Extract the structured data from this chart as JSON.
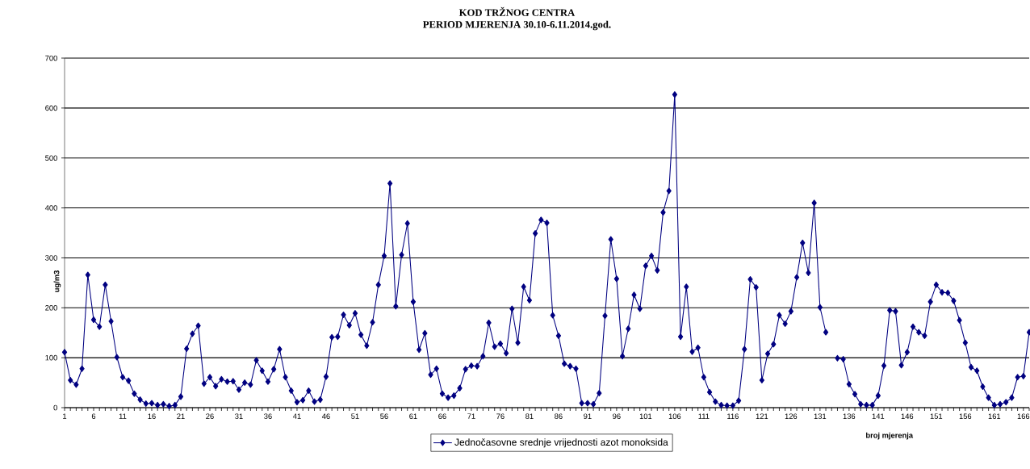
{
  "chart_data": {
    "type": "line",
    "title": "KOD TRŽNOG CENTRA",
    "subtitle": "PERIOD MJERENJA 30.10-6.11.2014.god.",
    "ylabel": "ug/m3",
    "xlabel": "broj mjerenja",
    "categories": [
      "1",
      null,
      null,
      null,
      null,
      "6",
      null,
      null,
      null,
      null,
      "11",
      null,
      null,
      null,
      null,
      "16",
      null,
      null,
      null,
      null,
      "21",
      null,
      null,
      null,
      null,
      "26",
      null,
      null,
      null,
      null,
      "31",
      null,
      null,
      null,
      null,
      "36",
      null,
      null,
      null,
      null,
      "41",
      null,
      null,
      null,
      null,
      "46",
      null,
      null,
      null,
      null,
      "51",
      null,
      null,
      null,
      null,
      "56",
      null,
      null,
      null,
      null,
      "61",
      null,
      null,
      null,
      null,
      "66",
      null,
      null,
      null,
      null,
      "71",
      null,
      null,
      null,
      null,
      "76",
      null,
      null,
      null,
      null,
      "81",
      null,
      null,
      null,
      null,
      "86",
      null,
      null,
      null,
      null,
      "91",
      null,
      null,
      null,
      null,
      "96",
      null,
      null,
      null,
      null,
      "101",
      null,
      null,
      null,
      null,
      "106",
      null,
      null,
      null,
      null,
      "111",
      null,
      null,
      null,
      null,
      "116",
      null,
      null,
      null,
      null,
      "121",
      null,
      null,
      null,
      null,
      "126",
      null,
      null,
      null,
      null,
      "131",
      null,
      null,
      null,
      null,
      "136",
      null,
      null,
      null,
      null,
      "141",
      null,
      null,
      null,
      null,
      "146",
      null,
      null,
      null,
      null,
      "151",
      null,
      null,
      null,
      null,
      "156",
      null,
      null,
      null,
      null,
      "161",
      null,
      null,
      null,
      null,
      "166",
      null
    ],
    "series": [
      {
        "name": "Jednočasovne srednje vrijednosti azot monoksida",
        "color": "#000080",
        "values": [
          111,
          55,
          46,
          78,
          266,
          176,
          162,
          246,
          173,
          101,
          61,
          54,
          28,
          16,
          8,
          9,
          5,
          7,
          3,
          5,
          22,
          118,
          148,
          164,
          48,
          61,
          43,
          57,
          52,
          53,
          36,
          50,
          46,
          95,
          74,
          52,
          77,
          117,
          61,
          34,
          11,
          15,
          34,
          12,
          16,
          62,
          141,
          142,
          186,
          165,
          189,
          146,
          124,
          171,
          246,
          304,
          449,
          203,
          306,
          369,
          212,
          116,
          149,
          66,
          78,
          28,
          20,
          24,
          39,
          77,
          84,
          83,
          103,
          170,
          122,
          128,
          109,
          198,
          130,
          242,
          215,
          349,
          376,
          370,
          185,
          144,
          88,
          83,
          78,
          9,
          9,
          7,
          29,
          184,
          337,
          258,
          103,
          158,
          226,
          198,
          284,
          304,
          275,
          391,
          434,
          627,
          142,
          242,
          112,
          120,
          61,
          31,
          12,
          5,
          4,
          4,
          14,
          117,
          257,
          241,
          55,
          108,
          127,
          185,
          168,
          193,
          261,
          330,
          270,
          410,
          201,
          151,
          null,
          99,
          97,
          47,
          27,
          7,
          5,
          5,
          24,
          84,
          195,
          193,
          85,
          111,
          162,
          151,
          144,
          212,
          246,
          231,
          230,
          214,
          175,
          130,
          81,
          74,
          42,
          20,
          5,
          7,
          11,
          20,
          61,
          63,
          151
        ]
      }
    ],
    "ylim": [
      0,
      700
    ],
    "yticks": [
      0,
      100,
      200,
      300,
      400,
      500,
      600,
      700
    ],
    "grid": "y",
    "legend": "bottom",
    "marker": "diamond",
    "line_style": "solid"
  }
}
